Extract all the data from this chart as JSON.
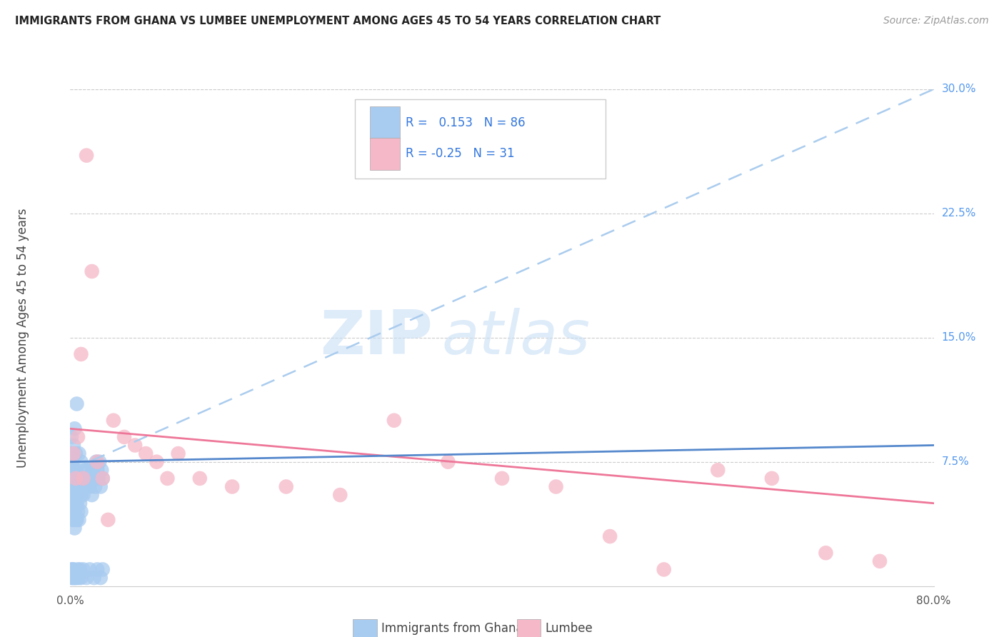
{
  "title": "IMMIGRANTS FROM GHANA VS LUMBEE UNEMPLOYMENT AMONG AGES 45 TO 54 YEARS CORRELATION CHART",
  "source": "Source: ZipAtlas.com",
  "ylabel": "Unemployment Among Ages 45 to 54 years",
  "xlabel_blue": "Immigrants from Ghana",
  "xlabel_pink": "Lumbee",
  "xlim": [
    0.0,
    0.8
  ],
  "ylim": [
    0.0,
    0.3
  ],
  "yticks_right": [
    0.075,
    0.15,
    0.225,
    0.3
  ],
  "ytick_labels_right": [
    "7.5%",
    "15.0%",
    "22.5%",
    "30.0%"
  ],
  "R_blue": 0.153,
  "N_blue": 86,
  "R_pink": -0.25,
  "N_pink": 31,
  "blue_color": "#A8CBF0",
  "pink_color": "#F5B8C8",
  "blue_line_color": "#5588CC",
  "blue_line_color2": "#AACCEE",
  "pink_line_color": "#EE7799",
  "watermark_zip": "ZIP",
  "watermark_atlas": "atlas",
  "blue_scatter_x": [
    0.001,
    0.001,
    0.001,
    0.001,
    0.001,
    0.002,
    0.002,
    0.002,
    0.002,
    0.002,
    0.002,
    0.002,
    0.002,
    0.003,
    0.003,
    0.003,
    0.003,
    0.003,
    0.003,
    0.003,
    0.004,
    0.004,
    0.004,
    0.004,
    0.004,
    0.004,
    0.005,
    0.005,
    0.005,
    0.005,
    0.005,
    0.006,
    0.006,
    0.006,
    0.006,
    0.007,
    0.007,
    0.007,
    0.008,
    0.008,
    0.008,
    0.009,
    0.009,
    0.01,
    0.01,
    0.01,
    0.011,
    0.012,
    0.013,
    0.014,
    0.015,
    0.016,
    0.017,
    0.018,
    0.019,
    0.02,
    0.021,
    0.022,
    0.023,
    0.024,
    0.025,
    0.026,
    0.027,
    0.028,
    0.029,
    0.03,
    0.001,
    0.001,
    0.002,
    0.002,
    0.003,
    0.003,
    0.004,
    0.005,
    0.006,
    0.007,
    0.008,
    0.009,
    0.01,
    0.012,
    0.015,
    0.018,
    0.022,
    0.025,
    0.028,
    0.03
  ],
  "blue_scatter_y": [
    0.05,
    0.06,
    0.07,
    0.08,
    0.09,
    0.04,
    0.05,
    0.055,
    0.06,
    0.065,
    0.07,
    0.075,
    0.08,
    0.04,
    0.045,
    0.055,
    0.06,
    0.065,
    0.07,
    0.085,
    0.035,
    0.045,
    0.055,
    0.06,
    0.065,
    0.095,
    0.04,
    0.05,
    0.06,
    0.07,
    0.08,
    0.04,
    0.05,
    0.06,
    0.11,
    0.045,
    0.055,
    0.065,
    0.04,
    0.06,
    0.08,
    0.05,
    0.065,
    0.045,
    0.055,
    0.075,
    0.06,
    0.055,
    0.065,
    0.07,
    0.06,
    0.065,
    0.07,
    0.06,
    0.065,
    0.055,
    0.07,
    0.065,
    0.06,
    0.075,
    0.07,
    0.065,
    0.075,
    0.06,
    0.07,
    0.065,
    0.005,
    0.01,
    0.005,
    0.01,
    0.005,
    0.01,
    0.005,
    0.005,
    0.005,
    0.01,
    0.005,
    0.01,
    0.005,
    0.01,
    0.005,
    0.01,
    0.005,
    0.01,
    0.005,
    0.01
  ],
  "pink_scatter_x": [
    0.003,
    0.007,
    0.01,
    0.015,
    0.02,
    0.025,
    0.03,
    0.04,
    0.05,
    0.06,
    0.07,
    0.08,
    0.09,
    0.1,
    0.12,
    0.15,
    0.2,
    0.25,
    0.3,
    0.35,
    0.4,
    0.45,
    0.5,
    0.55,
    0.6,
    0.65,
    0.7,
    0.75,
    0.005,
    0.012,
    0.035
  ],
  "pink_scatter_y": [
    0.08,
    0.09,
    0.14,
    0.26,
    0.19,
    0.075,
    0.065,
    0.1,
    0.09,
    0.085,
    0.08,
    0.075,
    0.065,
    0.08,
    0.065,
    0.06,
    0.06,
    0.055,
    0.1,
    0.075,
    0.065,
    0.06,
    0.03,
    0.01,
    0.07,
    0.065,
    0.02,
    0.015,
    0.065,
    0.065,
    0.04
  ]
}
